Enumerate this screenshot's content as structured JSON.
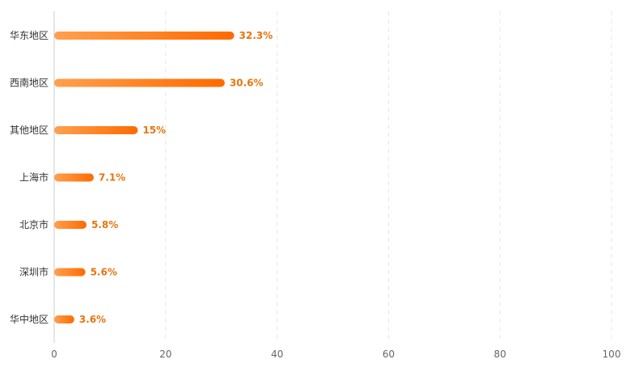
{
  "chart_data": {
    "type": "bar",
    "orientation": "horizontal",
    "categories": [
      "华东地区",
      "西南地区",
      "其他地区",
      "上海市",
      "北京市",
      "深圳市",
      "华中地区"
    ],
    "values": [
      32.3,
      30.6,
      15,
      7.1,
      5.8,
      5.6,
      3.6
    ],
    "value_labels": [
      "32.3%",
      "30.6%",
      "15%",
      "7.1%",
      "5.8%",
      "5.6%",
      "3.6%"
    ],
    "xlim": [
      0,
      100
    ],
    "x_ticks": [
      0,
      20,
      40,
      60,
      80,
      100
    ],
    "grid": "vertical-dashed",
    "bar_gradient": [
      "#ffa04f",
      "#ff6a00"
    ],
    "label_color": "#e8750e"
  }
}
